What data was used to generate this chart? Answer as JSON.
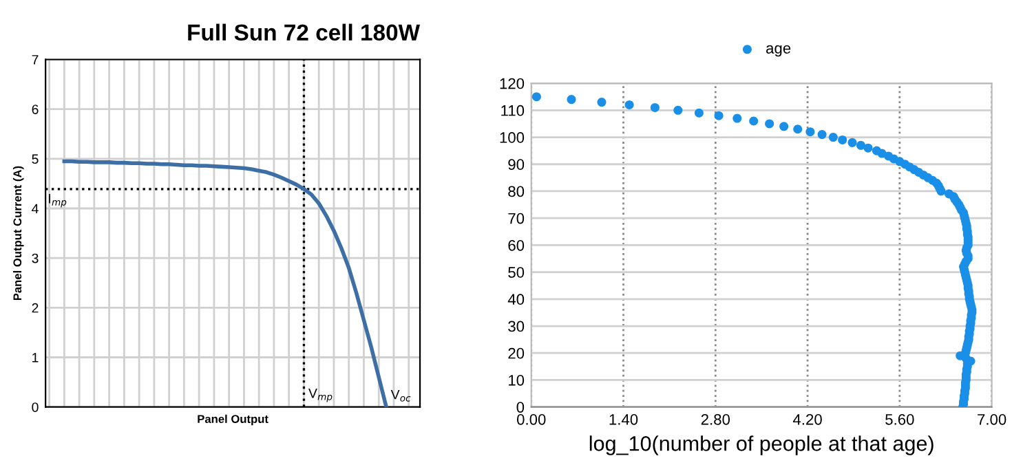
{
  "chart_data": [
    {
      "type": "line",
      "title": "Full Sun 72 cell 180W",
      "xlabel": "Panel Output",
      "ylabel": "Panel Output Current (A)",
      "categories": [
        null,
        null,
        null,
        null,
        null,
        null,
        null,
        null,
        null,
        null,
        null,
        null,
        null,
        null,
        null,
        null,
        null,
        null,
        null,
        null,
        null,
        null,
        null,
        null,
        null,
        null,
        null,
        null,
        null,
        null,
        null,
        null,
        null,
        null,
        null,
        null,
        null,
        null,
        null,
        null,
        null,
        null,
        null,
        null,
        null,
        null,
        null,
        null,
        null,
        null
      ],
      "series": [
        {
          "color": "#3d6fa6",
          "values": [
            null,
            null,
            4.95,
            4.95,
            4.94,
            4.94,
            4.93,
            4.93,
            4.93,
            4.92,
            4.92,
            4.91,
            4.91,
            4.9,
            4.9,
            4.89,
            4.89,
            4.88,
            4.87,
            4.87,
            4.86,
            4.86,
            4.85,
            4.84,
            4.83,
            4.82,
            4.81,
            4.79,
            4.76,
            4.73,
            4.68,
            4.62,
            4.55,
            4.48,
            4.39,
            4.28,
            4.1,
            3.85,
            3.55,
            3.2,
            2.8,
            2.3,
            1.75,
            1.2,
            0.6,
            0,
            null,
            null,
            null,
            null
          ]
        }
      ],
      "ylim": [
        0,
        7
      ],
      "yticks": [
        0,
        1,
        2,
        3,
        4,
        5,
        6,
        7
      ],
      "tick_labels": "y",
      "grid": true,
      "marker": "none",
      "line_style": "solid",
      "ref_lines": [
        {
          "axis": "y",
          "value": 4.39,
          "label": "I$_{mp}$",
          "color": "#000000",
          "line_style": "dotted"
        }
      ],
      "annotations": [
        "V$_{mp}$",
        "V$_{oc}$"
      ]
    },
    {
      "type": "scatter",
      "xlabel": "log_10(number of people at that age)",
      "legend": "top",
      "grid": true,
      "marker": "circle",
      "series": [
        {
          "name": "age",
          "color": "#1a8fe8",
          "x": [
            6.56,
            6.57,
            6.57,
            6.58,
            6.58,
            6.59,
            6.59,
            6.6,
            6.6,
            6.6,
            6.61,
            6.61,
            6.61,
            6.62,
            6.62,
            6.63,
            6.63,
            6.68,
            6.61,
            6.52,
            6.6,
            6.61,
            6.62,
            6.63,
            6.64,
            6.65,
            6.65,
            6.66,
            6.66,
            6.67,
            6.67,
            6.68,
            6.68,
            6.69,
            6.69,
            6.7,
            6.7,
            6.69,
            6.68,
            6.67,
            6.66,
            6.66,
            6.65,
            6.65,
            6.64,
            6.64,
            6.63,
            6.62,
            6.61,
            6.6,
            6.59,
            6.58,
            6.57,
            6.59,
            6.61,
            6.64,
            6.64,
            6.62,
            6.61,
            6.62,
            6.64,
            6.64,
            6.64,
            6.64,
            6.63,
            6.63,
            6.62,
            6.62,
            6.61,
            6.6,
            6.59,
            6.58,
            6.57,
            6.54,
            6.52,
            6.5,
            6.47,
            6.44,
            6.42,
            6.35,
            6.23,
            6.21,
            6.19,
            6.16,
            6.1,
            6.03,
            5.96,
            5.89,
            5.82,
            5.75,
            5.68,
            5.6,
            5.51,
            5.43,
            5.33,
            5.25,
            5.12,
            5.01,
            4.88,
            4.73,
            4.59,
            4.42,
            4.24,
            4.05,
            3.84,
            3.62,
            3.38,
            3.13,
            2.85,
            2.55,
            2.23,
            1.88,
            1.49,
            1.07,
            0.61,
            0.08
          ],
          "values": [
            0,
            1,
            2,
            3,
            4,
            5,
            6,
            7,
            8,
            9,
            10,
            11,
            12,
            13,
            14,
            15,
            16,
            17,
            18,
            19,
            20,
            21,
            22,
            23,
            24,
            25,
            26,
            27,
            28,
            29,
            30,
            31,
            32,
            33,
            34,
            35,
            36,
            37,
            38,
            39,
            40,
            41,
            42,
            43,
            44,
            45,
            46,
            47,
            48,
            49,
            50,
            51,
            52,
            53,
            54,
            55,
            56,
            57,
            58,
            59,
            60,
            61,
            62,
            63,
            64,
            65,
            66,
            67,
            68,
            69,
            70,
            71,
            72,
            73,
            74,
            75,
            76,
            77,
            78,
            79,
            80,
            81,
            82,
            83,
            84,
            85,
            86,
            87,
            88,
            89,
            90,
            91,
            92,
            93,
            94,
            95,
            96,
            97,
            98,
            99,
            100,
            101,
            102,
            103,
            104,
            105,
            106,
            107,
            108,
            109,
            110,
            111,
            112,
            113,
            114,
            115
          ]
        }
      ],
      "xlim": [
        0,
        7
      ],
      "xticks": [
        {
          "value": 0,
          "label": "0.00"
        },
        {
          "value": 1.4,
          "label": "1.40"
        },
        {
          "value": 2.8,
          "label": "2.80"
        },
        {
          "value": 4.2,
          "label": "4.20"
        },
        {
          "value": 5.6,
          "label": "5.60"
        },
        {
          "value": 7,
          "label": "7.00"
        }
      ],
      "ylim": [
        0,
        120
      ],
      "yticks": [
        0,
        10,
        20,
        30,
        40,
        50,
        60,
        70,
        80,
        90,
        100,
        110,
        120
      ]
    }
  ]
}
